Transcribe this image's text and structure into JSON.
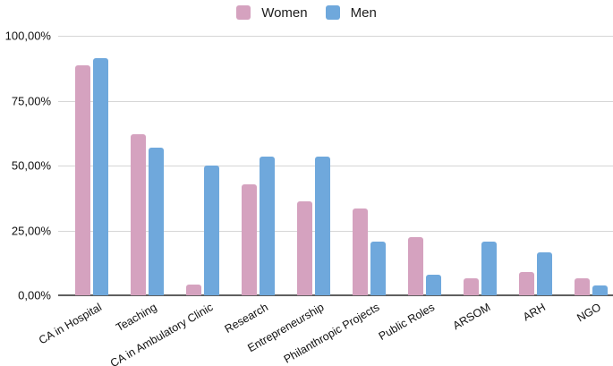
{
  "chart_data": {
    "type": "bar",
    "title": "",
    "categories": [
      "CA in Hospital",
      "Teaching",
      "CA in Ambulatory Clinic",
      "Research",
      "Entrepreneurship",
      "Philanthropic Projects",
      "Public Roles",
      "ARSOM",
      "ARH",
      "NGO"
    ],
    "series": [
      {
        "name": "Women",
        "color": "#d5a2bf",
        "values": [
          88.5,
          62.0,
          4.3,
          42.8,
          36.2,
          33.6,
          22.3,
          6.4,
          8.9,
          6.4
        ]
      },
      {
        "name": "Men",
        "color": "#6fa8dc",
        "values": [
          91.5,
          57.0,
          50.0,
          53.6,
          53.6,
          20.7,
          8.0,
          20.7,
          16.4,
          3.9
        ]
      }
    ],
    "y_axis": {
      "tick_labels": [
        "100,00%",
        "75,00%",
        "50,00%",
        "25,00%",
        "0,00%"
      ],
      "ticks_percent": [
        100,
        75,
        50,
        25,
        0
      ],
      "range": [
        0,
        100
      ],
      "decimal_separator": "comma"
    },
    "x_axis": {
      "label_rotation_deg": -30
    },
    "grid": true,
    "legend_position": "top-center"
  },
  "colors": {
    "background": "#ffffff",
    "gridline": "#d6d6d6",
    "axis_line": "#5f5f5f",
    "tick_text": "#111111",
    "legend_text": "#1b1b1b"
  }
}
